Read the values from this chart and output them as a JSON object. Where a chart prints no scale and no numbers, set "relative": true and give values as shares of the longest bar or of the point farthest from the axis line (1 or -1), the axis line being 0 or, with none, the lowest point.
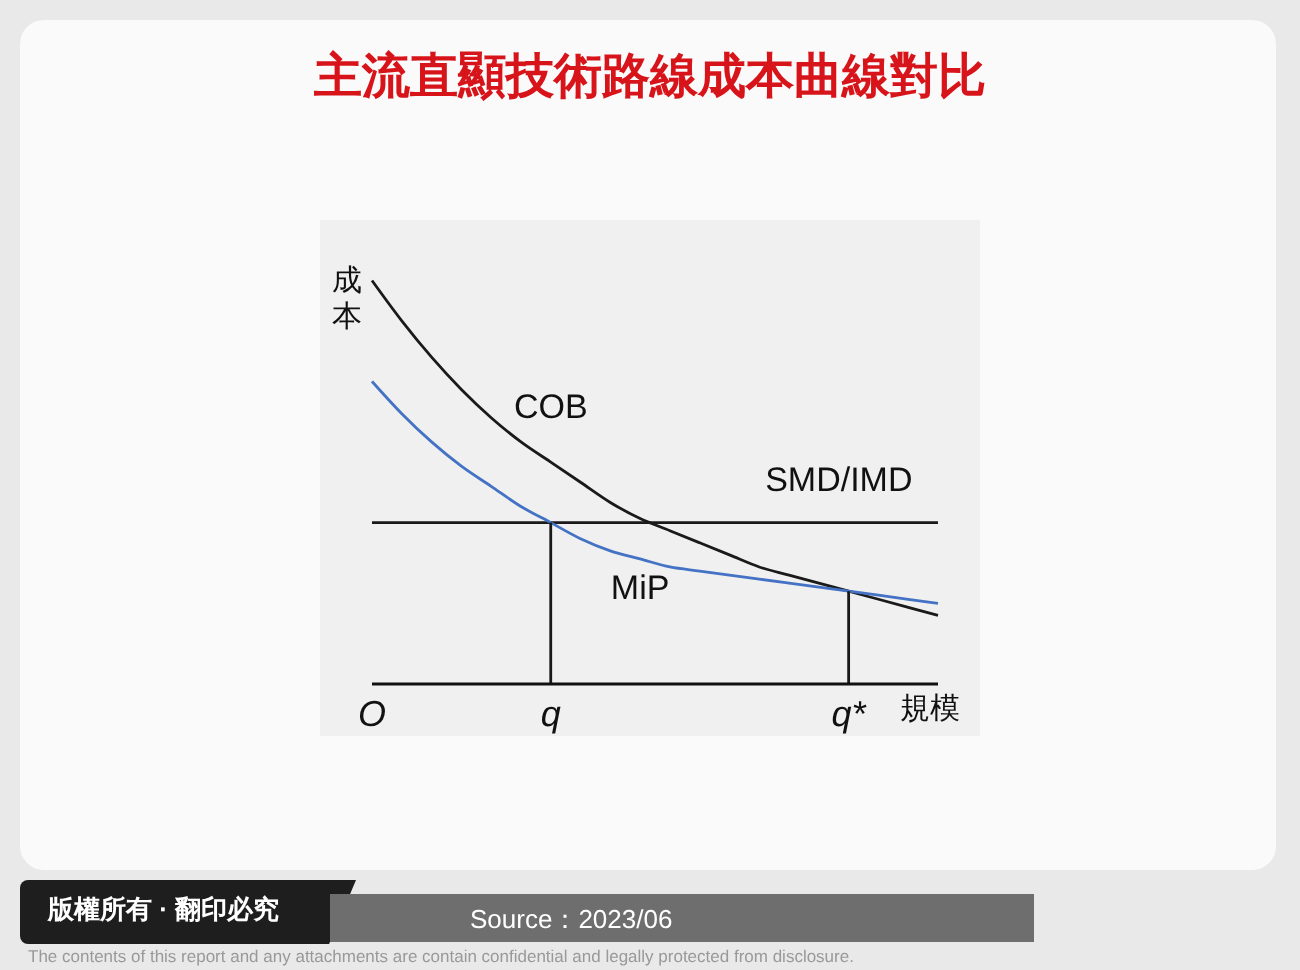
{
  "chart_data": {
    "type": "line",
    "title": "主流直顯技術路線成本曲線對比",
    "xlabel": "規模",
    "ylabel": "成本",
    "relative": true,
    "categories": [
      "O",
      null,
      null,
      null,
      null,
      null,
      "q",
      null,
      null,
      null,
      null,
      null,
      null,
      null,
      null,
      null,
      "q*",
      null,
      null,
      null
    ],
    "series": [
      {
        "name": "COB",
        "color": "#1a1a1a",
        "values": [
          1,
          0.9,
          0.81,
          0.73,
          0.66,
          0.6,
          0.55,
          0.5,
          0.45,
          0.41,
          0.38,
          0.35,
          0.32,
          0.29,
          0.27,
          0.25,
          0.23,
          0.21,
          0.19,
          0.17
        ]
      },
      {
        "name": "SMD/IMD",
        "color": "#1a1a1a",
        "values": [
          0.4,
          0.4,
          0.4,
          0.4,
          0.4,
          0.4,
          0.4,
          0.4,
          0.4,
          0.4,
          0.4,
          0.4,
          0.4,
          0.4,
          0.4,
          0.4,
          0.4,
          0.4,
          0.4,
          0.4
        ]
      },
      {
        "name": "MiP",
        "color": "#4472c4",
        "values": [
          0.75,
          0.67,
          0.6,
          0.54,
          0.49,
          0.44,
          0.4,
          0.36,
          0.33,
          0.31,
          0.29,
          0.28,
          0.27,
          0.26,
          0.25,
          0.24,
          0.23,
          0.22,
          0.21,
          0.2
        ]
      }
    ],
    "ref_lines": [
      {
        "axis": "x",
        "value": "q",
        "color": "#1a1a1a"
      },
      {
        "axis": "x",
        "value": "q*",
        "color": "#1a1a1a"
      }
    ],
    "legend": false,
    "grid": false,
    "marker": "none",
    "line_style": "solid",
    "annotations": [
      "版權所有 · 翻印必究",
      "Source：2023/06",
      "The contents of this report and any attachments are contain confidential and legally protected from disclosure."
    ]
  }
}
